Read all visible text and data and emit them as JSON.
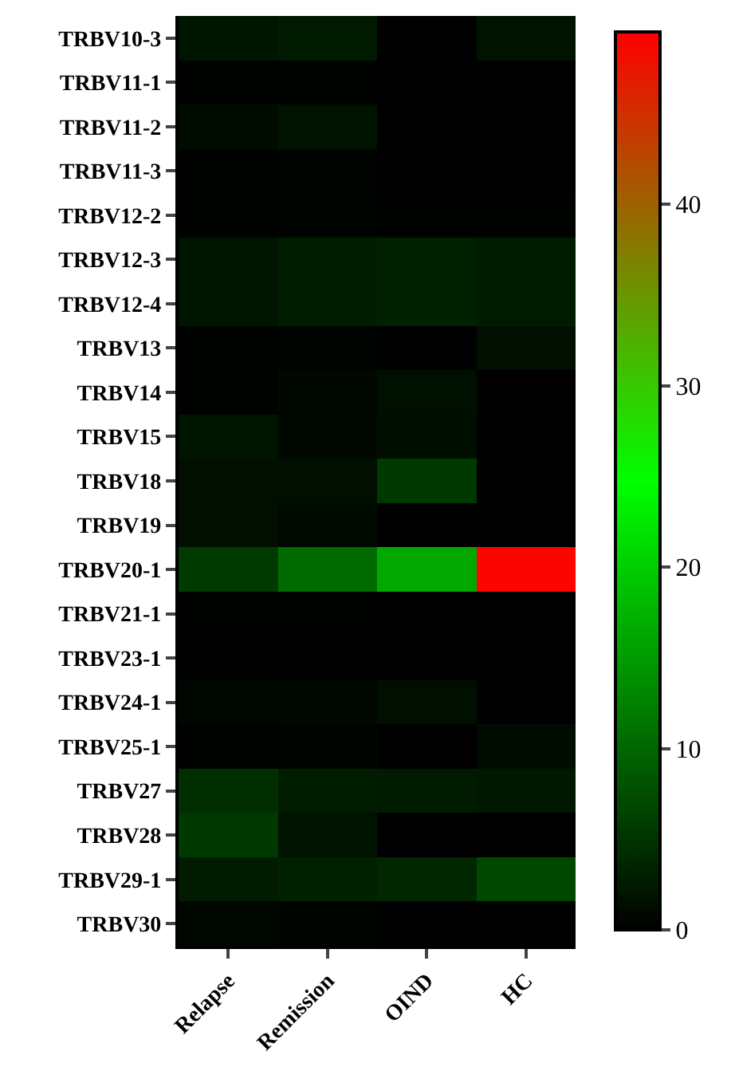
{
  "chart_data": {
    "type": "heatmap",
    "categories": [
      "Relapse",
      "Remission",
      "OIND",
      "HC"
    ],
    "y_categories": [
      "TRBV10-3",
      "TRBV11-1",
      "TRBV11-2",
      "TRBV11-3",
      "TRBV12-2",
      "TRBV12-3",
      "TRBV12-4",
      "TRBV13",
      "TRBV14",
      "TRBV15",
      "TRBV18",
      "TRBV19",
      "TRBV20-1",
      "TRBV21-1",
      "TRBV23-1",
      "TRBV24-1",
      "TRBV25-1",
      "TRBV27",
      "TRBV28",
      "TRBV29-1",
      "TRBV30"
    ],
    "cells": [
      [
        2,
        2.5,
        0,
        1.7
      ],
      [
        0.2,
        0.2,
        0,
        0
      ],
      [
        1.2,
        1.8,
        0,
        0
      ],
      [
        0.2,
        0.3,
        0,
        0
      ],
      [
        0.2,
        0.4,
        0.2,
        0.2
      ],
      [
        2,
        2.8,
        3.2,
        2.7
      ],
      [
        2,
        2.8,
        3.2,
        2.7
      ],
      [
        0.2,
        0.4,
        0,
        1.5
      ],
      [
        0.2,
        0.8,
        1.6,
        0
      ],
      [
        2,
        0.8,
        1.4,
        0
      ],
      [
        1.5,
        1.5,
        5.5,
        0
      ],
      [
        1.5,
        1,
        0,
        0
      ],
      [
        5.6,
        10.4,
        16.3,
        49
      ],
      [
        0.2,
        0.2,
        0.1,
        0
      ],
      [
        0.1,
        0.1,
        0,
        0
      ],
      [
        0.7,
        0.8,
        1.5,
        0
      ],
      [
        0.2,
        0.5,
        0,
        1.2
      ],
      [
        4.5,
        2.8,
        2.6,
        2.2
      ],
      [
        5.5,
        1.8,
        0,
        0
      ],
      [
        2.6,
        3.2,
        3.8,
        7
      ],
      [
        0.6,
        0.5,
        0.1,
        0.1
      ]
    ],
    "colors": [
      "#000000",
      "#00ff00",
      "#ff0000"
    ],
    "clim": [
      0,
      49.5
    ],
    "cticks": [
      0,
      10,
      20,
      30,
      40
    ]
  }
}
